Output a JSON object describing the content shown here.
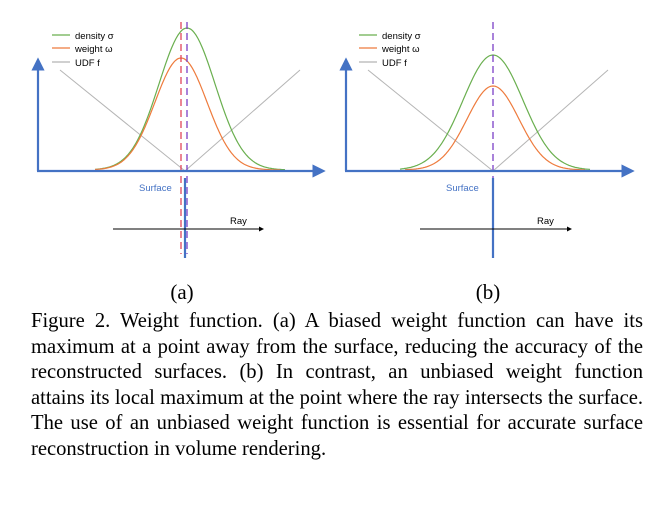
{
  "figure": {
    "legend": {
      "density": "density σ",
      "weight": "weight ω",
      "udf": "UDF f"
    },
    "surface_label": "Surface",
    "ray_label": "Ray",
    "panel_a": "(a)",
    "panel_b": "(b)",
    "colors": {
      "density": "#6aaf4f",
      "weight": "#ee7b3d",
      "udf": "#b5b5b5",
      "axis": "#4472c4",
      "surface": "#4472c4",
      "dashed_red": "#e0455a",
      "dashed_purple": "#7b3fc6"
    }
  },
  "caption": "Figure 2. Weight function. (a) A biased weight function can have its maximum at a point away from the surface, reducing the accuracy of the reconstructed surfaces. (b) In contrast, an unbiased weight function attains its local maximum at the point where the ray intersects the surface. The use of an unbiased weight function is essential for accurate surface reconstruction in volume rendering."
}
